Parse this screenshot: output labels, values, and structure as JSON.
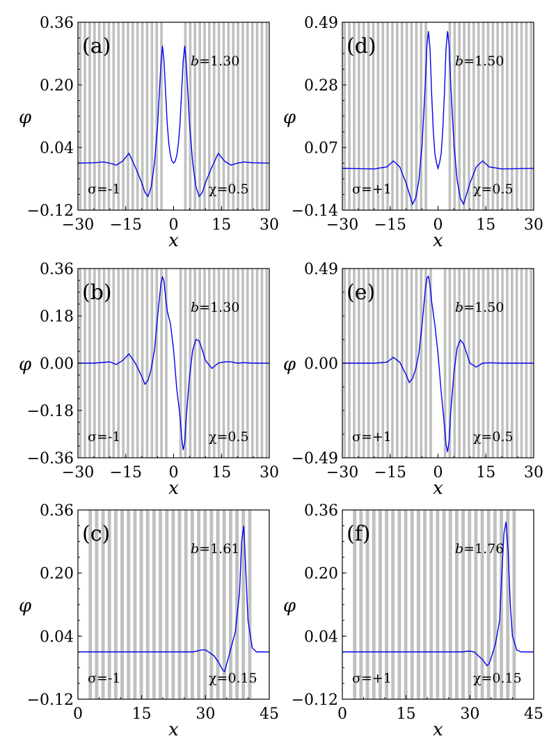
{
  "figure": {
    "colors": {
      "stripe": "#c0c0c0",
      "curve": "#0000ee",
      "axis": "#000000"
    }
  },
  "chart_data": [
    {
      "type": "line",
      "panel_label": "(a)",
      "b_label": "b",
      "b_value": "=1.30",
      "sigma_text": "σ=-1",
      "chi_text": "χ=0.5",
      "xlabel": "x",
      "ylabel": "φ",
      "xlim": [
        -30,
        30
      ],
      "ylim": [
        -0.12,
        0.36
      ],
      "xticks": [
        -30,
        -15,
        0,
        15,
        30
      ],
      "xtick_labels": [
        "−30",
        "−15",
        "0",
        "15",
        "30"
      ],
      "yticks": [
        -0.12,
        0.04,
        0.2,
        0.36
      ],
      "ytick_labels": [
        "−0.12",
        "0.04",
        "0.20",
        "0.36"
      ],
      "stripe_period": 1.5,
      "stripe_width": 0.8,
      "stripe_gap": [
        -2,
        2
      ],
      "x": [
        -30,
        -25,
        -22,
        -20,
        -18,
        -16,
        -14,
        -12,
        -10,
        -9,
        -8,
        -7,
        -6,
        -5,
        -4,
        -3.5,
        -3,
        -2.5,
        -2,
        -1.5,
        -1,
        -0.5,
        0,
        0.5,
        1,
        1.5,
        2,
        2.5,
        3,
        3.5,
        4,
        5,
        6,
        7,
        8,
        9,
        10,
        12,
        14,
        16,
        18,
        20,
        22,
        25,
        30
      ],
      "y": [
        0,
        0.001,
        0.003,
        0,
        -0.005,
        0.005,
        0.025,
        -0.01,
        -0.05,
        -0.075,
        -0.085,
        -0.06,
        0.0,
        0.1,
        0.25,
        0.3,
        0.26,
        0.18,
        0.1,
        0.05,
        0.02,
        0.005,
        0.0,
        0.005,
        0.02,
        0.05,
        0.1,
        0.18,
        0.26,
        0.3,
        0.25,
        0.1,
        0.0,
        -0.06,
        -0.085,
        -0.075,
        -0.05,
        -0.01,
        0.025,
        0.005,
        -0.005,
        0,
        0.003,
        0.001,
        0
      ]
    },
    {
      "type": "line",
      "panel_label": "(d)",
      "b_label": "b",
      "b_value": "=1.50",
      "sigma_text": "σ=+1",
      "chi_text": "χ=0.5",
      "xlabel": "x",
      "ylabel": "φ",
      "xlim": [
        -30,
        30
      ],
      "ylim": [
        -0.14,
        0.49
      ],
      "xticks": [
        -30,
        -15,
        0,
        15,
        30
      ],
      "xtick_labels": [
        "−30",
        "−15",
        "0",
        "15",
        "30"
      ],
      "yticks": [
        -0.14,
        0.07,
        0.28,
        0.49
      ],
      "ytick_labels": [
        "−0.14",
        "0.07",
        "0.28",
        "0.49"
      ],
      "stripe_period": 1.5,
      "stripe_width": 0.8,
      "stripe_gap": [
        -2,
        2
      ],
      "x": [
        -30,
        -20,
        -16,
        -14,
        -12,
        -10,
        -9,
        -8,
        -7,
        -6,
        -5,
        -4,
        -3.5,
        -3,
        -2.5,
        -2,
        -1.5,
        -1,
        -0.5,
        0,
        0.5,
        1,
        1.5,
        2,
        2.5,
        3,
        3.5,
        4,
        5,
        6,
        7,
        8,
        9,
        10,
        12,
        14,
        16,
        20,
        30
      ],
      "y": [
        0,
        -0.002,
        0.005,
        0.025,
        0.005,
        -0.05,
        -0.085,
        -0.12,
        -0.1,
        -0.04,
        0.08,
        0.28,
        0.41,
        0.46,
        0.4,
        0.25,
        0.13,
        0.05,
        0.02,
        0.0,
        0.02,
        0.05,
        0.13,
        0.25,
        0.4,
        0.46,
        0.41,
        0.28,
        0.08,
        -0.04,
        -0.1,
        -0.12,
        -0.085,
        -0.05,
        0.005,
        0.025,
        0.005,
        -0.002,
        0
      ]
    },
    {
      "type": "line",
      "panel_label": "(b)",
      "b_label": "b",
      "b_value": "=1.30",
      "sigma_text": "σ=-1",
      "chi_text": "χ=0.5",
      "xlabel": "x",
      "ylabel": "φ",
      "xlim": [
        -30,
        30
      ],
      "ylim": [
        -0.36,
        0.36
      ],
      "xticks": [
        -30,
        -15,
        0,
        15,
        30
      ],
      "xtick_labels": [
        "−30",
        "−15",
        "0",
        "15",
        "30"
      ],
      "yticks": [
        -0.36,
        -0.18,
        0.0,
        0.18,
        0.36
      ],
      "ytick_labels": [
        "−0.36",
        "−0.18",
        "0.00",
        "0.18",
        "0.36"
      ],
      "stripe_period": 1.5,
      "stripe_width": 0.8,
      "stripe_gap": [
        -1,
        1
      ],
      "x": [
        -30,
        -25,
        -22,
        -20,
        -18,
        -16,
        -14,
        -12,
        -10,
        -9,
        -8,
        -7,
        -6,
        -5,
        -4,
        -3.5,
        -3,
        -2.5,
        -2,
        -1,
        0,
        1,
        2,
        2.5,
        3,
        3.5,
        4,
        5,
        6,
        7,
        8,
        9,
        10,
        12,
        14,
        16,
        18,
        20,
        22,
        25,
        30
      ],
      "y": [
        0,
        0.0,
        0.003,
        0.005,
        -0.005,
        0.01,
        0.035,
        0.0,
        -0.05,
        -0.08,
        -0.065,
        -0.02,
        0.05,
        0.18,
        0.3,
        0.33,
        0.31,
        0.25,
        0.2,
        0.15,
        0.05,
        -0.1,
        -0.2,
        -0.28,
        -0.33,
        -0.3,
        -0.2,
        -0.05,
        0.05,
        0.09,
        0.085,
        0.05,
        0.01,
        -0.02,
        0.0,
        0.005,
        0.005,
        0.0,
        0.002,
        0.0,
        0
      ]
    },
    {
      "type": "line",
      "panel_label": "(e)",
      "b_label": "b",
      "b_value": "=1.50",
      "sigma_text": "σ=+1",
      "chi_text": "χ=0.5",
      "xlabel": "x",
      "ylabel": "φ",
      "xlim": [
        -30,
        30
      ],
      "ylim": [
        -0.49,
        0.49
      ],
      "xticks": [
        -30,
        -15,
        0,
        15,
        30
      ],
      "xtick_labels": [
        "−30",
        "−15",
        "0",
        "15",
        "30"
      ],
      "yticks": [
        -0.49,
        0.0,
        0.49
      ],
      "ytick_labels": [
        "−0.49",
        "0.00",
        "0.49"
      ],
      "stripe_period": 1.5,
      "stripe_width": 0.8,
      "stripe_gap": [
        -1,
        1
      ],
      "x": [
        -30,
        -20,
        -16,
        -14,
        -12,
        -10,
        -9,
        -8,
        -7,
        -6,
        -5,
        -4,
        -3.5,
        -3,
        -2.5,
        -2,
        -1,
        0,
        1,
        2,
        2.5,
        3,
        3.5,
        4,
        5,
        6,
        7,
        8,
        9,
        10,
        12,
        14,
        16,
        20,
        30
      ],
      "y": [
        0,
        0.0,
        0.005,
        0.03,
        0.005,
        -0.06,
        -0.1,
        -0.08,
        -0.03,
        0.05,
        0.2,
        0.38,
        0.44,
        0.45,
        0.4,
        0.32,
        0.2,
        0.05,
        -0.15,
        -0.32,
        -0.42,
        -0.46,
        -0.4,
        -0.25,
        -0.05,
        0.08,
        0.12,
        0.1,
        0.05,
        0.0,
        -0.02,
        0.0,
        0.002,
        0.0,
        0
      ]
    },
    {
      "type": "line",
      "panel_label": "(c)",
      "b_label": "b",
      "b_value": "=1.61",
      "sigma_text": "σ=-1",
      "chi_text": "χ=0.15",
      "xlabel": "x",
      "ylabel": "φ",
      "xlim": [
        0,
        45
      ],
      "ylim": [
        -0.12,
        0.36
      ],
      "xticks": [
        0,
        15,
        30,
        45
      ],
      "xtick_labels": [
        "0",
        "15",
        "30",
        "45"
      ],
      "yticks": [
        -0.12,
        0.04,
        0.2,
        0.36
      ],
      "ytick_labels": [
        "−0.12",
        "0.04",
        "0.20",
        "0.36"
      ],
      "stripe_period": 1.5,
      "stripe_width": 0.8,
      "stripe_start": 2.5,
      "stripe_end": 41,
      "x": [
        0,
        10,
        20,
        25,
        27,
        28,
        29,
        30,
        31,
        32,
        33,
        34,
        34.5,
        35,
        36,
        37,
        38,
        38.5,
        39,
        39.5,
        40,
        41,
        42,
        43,
        45
      ],
      "y": [
        0,
        0,
        0,
        0,
        0.0,
        0.002,
        0.005,
        0.005,
        -0.002,
        -0.01,
        -0.025,
        -0.045,
        -0.05,
        -0.03,
        0.01,
        0.05,
        0.15,
        0.28,
        0.32,
        0.2,
        0.08,
        0.01,
        0.0,
        0.0,
        0
      ]
    },
    {
      "type": "line",
      "panel_label": "(f)",
      "b_label": "b",
      "b_value": "=1.76",
      "sigma_text": "σ=+1",
      "chi_text": "χ=0.15",
      "xlabel": "x",
      "ylabel": "φ",
      "xlim": [
        0,
        45
      ],
      "ylim": [
        -0.12,
        0.36
      ],
      "xticks": [
        0,
        15,
        30,
        45
      ],
      "xtick_labels": [
        "0",
        "15",
        "30",
        "45"
      ],
      "yticks": [
        -0.12,
        0.04,
        0.2,
        0.36
      ],
      "ytick_labels": [
        "−0.12",
        "0.04",
        "0.20",
        "0.36"
      ],
      "stripe_period": 1.5,
      "stripe_width": 0.8,
      "stripe_start": 2.5,
      "stripe_end": 41,
      "x": [
        0,
        10,
        20,
        25,
        28,
        30,
        31,
        32,
        33,
        34,
        34.5,
        35,
        36,
        37,
        37.5,
        38,
        38.5,
        39,
        39.5,
        40,
        41,
        42,
        43,
        45
      ],
      "y": [
        0,
        0,
        0,
        0,
        0.0,
        0.002,
        0.0,
        -0.01,
        -0.02,
        -0.035,
        -0.03,
        -0.015,
        0.02,
        0.08,
        0.2,
        0.3,
        0.33,
        0.25,
        0.12,
        0.04,
        0.005,
        0.0,
        0.0,
        0
      ]
    }
  ]
}
